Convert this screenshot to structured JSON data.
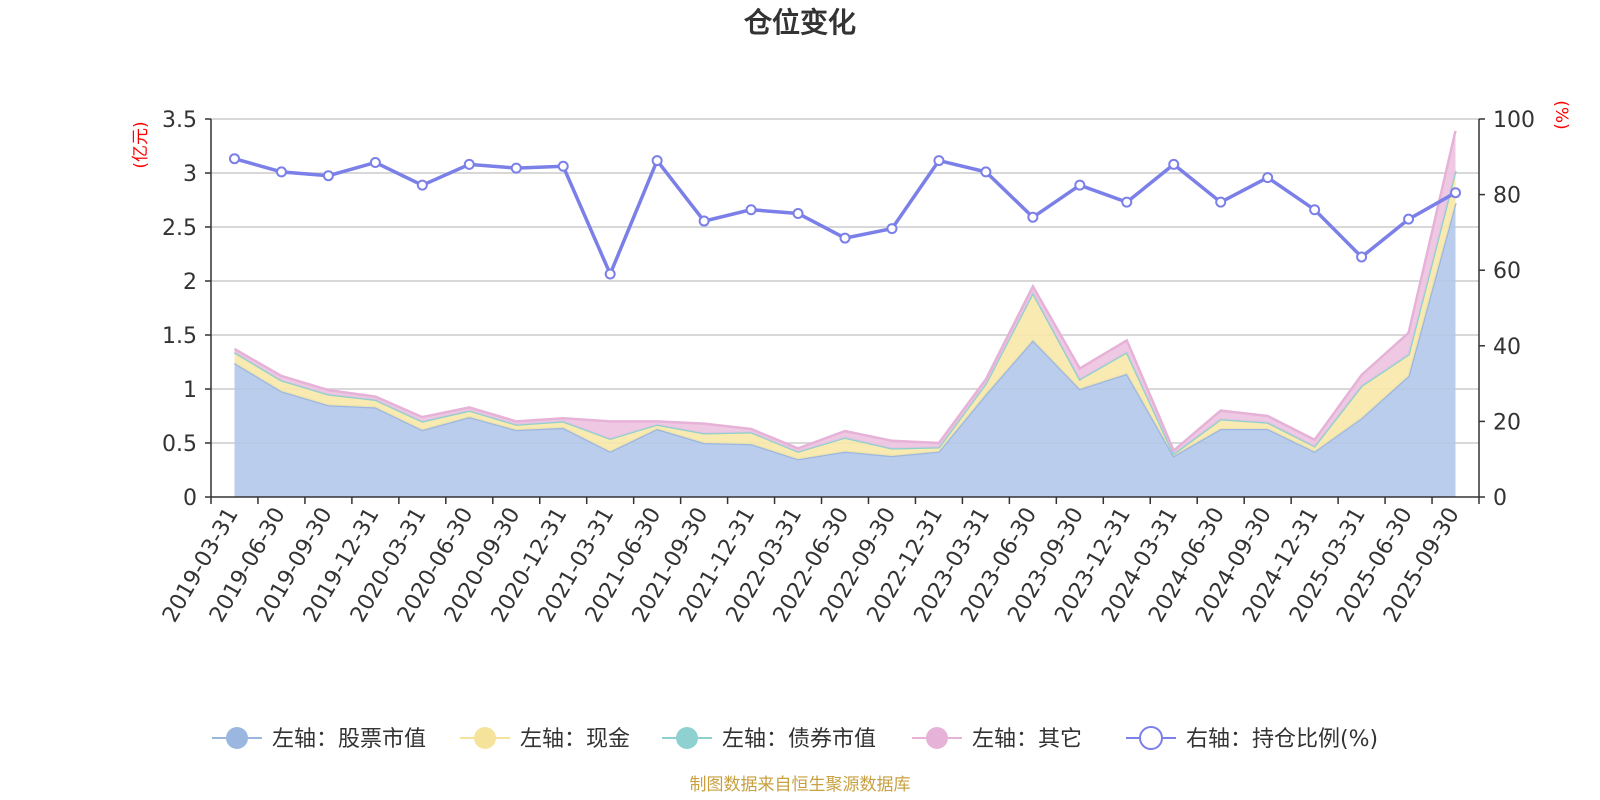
{
  "chart_data": {
    "type": "area",
    "title": "仓位变化",
    "left_unit": "(亿元)",
    "right_unit": "(%)",
    "categories": [
      "2019-03-31",
      "2019-06-30",
      "2019-09-30",
      "2019-12-31",
      "2020-03-31",
      "2020-06-30",
      "2020-09-30",
      "2020-12-31",
      "2021-03-31",
      "2021-06-30",
      "2021-09-30",
      "2021-12-31",
      "2022-03-31",
      "2022-06-30",
      "2022-09-30",
      "2022-12-31",
      "2023-03-31",
      "2023-06-30",
      "2023-09-30",
      "2023-12-31",
      "2024-03-31",
      "2024-06-30",
      "2024-09-30",
      "2024-12-31",
      "2025-03-31",
      "2025-06-30",
      "2025-09-30"
    ],
    "left_axis": {
      "min": 0,
      "max": 3.5,
      "ticks": [
        "0",
        "0.5",
        "1",
        "1.5",
        "2",
        "2.5",
        "3",
        "3.5"
      ]
    },
    "right_axis": {
      "min": 0,
      "max": 100,
      "ticks": [
        "0",
        "20",
        "40",
        "60",
        "80",
        "100"
      ]
    },
    "stacked": true,
    "series": [
      {
        "name": "左轴：股票市值",
        "axis": "left",
        "color": "#9bb7e0",
        "fill": "#b3c8ea",
        "values": [
          1.24,
          0.98,
          0.85,
          0.83,
          0.62,
          0.74,
          0.62,
          0.64,
          0.42,
          0.63,
          0.5,
          0.49,
          0.35,
          0.42,
          0.38,
          0.42,
          0.95,
          1.45,
          1.0,
          1.14,
          0.38,
          0.63,
          0.63,
          0.42,
          0.73,
          1.12,
          2.72
        ]
      },
      {
        "name": "左轴：现金",
        "axis": "left",
        "color": "#f5e39c",
        "fill": "#f7e8a8",
        "values": [
          0.1,
          0.1,
          0.1,
          0.07,
          0.08,
          0.06,
          0.05,
          0.06,
          0.12,
          0.04,
          0.09,
          0.11,
          0.07,
          0.13,
          0.07,
          0.04,
          0.1,
          0.44,
          0.09,
          0.2,
          0.02,
          0.09,
          0.06,
          0.05,
          0.3,
          0.2,
          0.3
        ]
      },
      {
        "name": "左轴：债券市值",
        "axis": "left",
        "color": "#8fd0d0",
        "fill": "#9fd6d6",
        "values": [
          0,
          0,
          0,
          0,
          0,
          0,
          0,
          0,
          0,
          0,
          0,
          0,
          0,
          0,
          0,
          0,
          0,
          0,
          0,
          0,
          0,
          0,
          0,
          0,
          0,
          0,
          0
        ]
      },
      {
        "name": "左轴：其它",
        "axis": "left",
        "color": "#e6b2d8",
        "fill": "#edc3e1",
        "values": [
          0.03,
          0.04,
          0.04,
          0.03,
          0.04,
          0.03,
          0.03,
          0.03,
          0.16,
          0.03,
          0.09,
          0.03,
          0.03,
          0.06,
          0.07,
          0.04,
          0.04,
          0.06,
          0.1,
          0.11,
          0.03,
          0.08,
          0.06,
          0.06,
          0.1,
          0.2,
          0.37
        ]
      },
      {
        "name": "右轴：持仓比例(%)",
        "axis": "right",
        "color": "#7b7fe8",
        "values": [
          89.5,
          86.0,
          85.0,
          88.5,
          82.5,
          88.0,
          87.0,
          87.5,
          59.0,
          89.0,
          73.0,
          76.0,
          75.0,
          68.5,
          71.0,
          89.0,
          86.0,
          74.0,
          82.5,
          78.0,
          88.0,
          78.0,
          84.5,
          76.0,
          63.5,
          73.5,
          80.5
        ]
      }
    ],
    "legend_position": "bottom",
    "source": "制图数据来自恒生聚源数据库"
  }
}
